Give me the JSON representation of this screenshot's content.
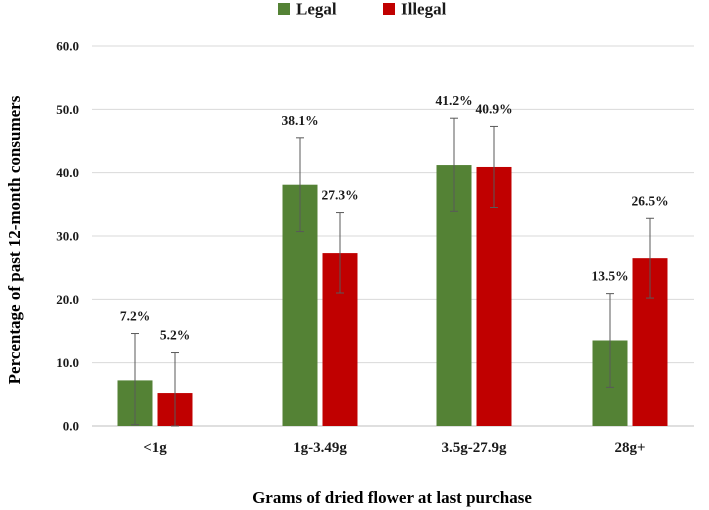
{
  "chart_data": {
    "type": "bar",
    "title": "",
    "xlabel": "Grams of dried flower at last purchase",
    "ylabel": "Percentage of past 12-month consumers",
    "ylim": [
      0,
      60
    ],
    "yticks": [
      "0.0",
      "10.0",
      "20.0",
      "30.0",
      "40.0",
      "50.0",
      "60.0"
    ],
    "categories": [
      "<1g",
      "1g-3.49g",
      "3.5g-27.9g",
      "28g+"
    ],
    "series": [
      {
        "name": "Legal",
        "color": "#548235",
        "values": [
          7.2,
          38.1,
          41.2,
          13.5
        ],
        "labels": [
          "7.2%",
          "38.1%",
          "41.2%",
          "13.5%"
        ],
        "error_low": [
          0.2,
          30.7,
          33.9,
          6.1
        ],
        "error_high": [
          14.6,
          45.5,
          48.6,
          20.9
        ]
      },
      {
        "name": "Illegal",
        "color": "#C00000",
        "values": [
          5.2,
          27.3,
          40.9,
          26.5
        ],
        "labels": [
          "5.2%",
          "27.3%",
          "40.9%",
          "26.5%"
        ],
        "error_low": [
          0.0,
          21.0,
          34.5,
          20.2
        ],
        "error_high": [
          11.6,
          33.7,
          47.3,
          32.8
        ]
      }
    ],
    "grid": true,
    "legend_position": "top-center"
  }
}
